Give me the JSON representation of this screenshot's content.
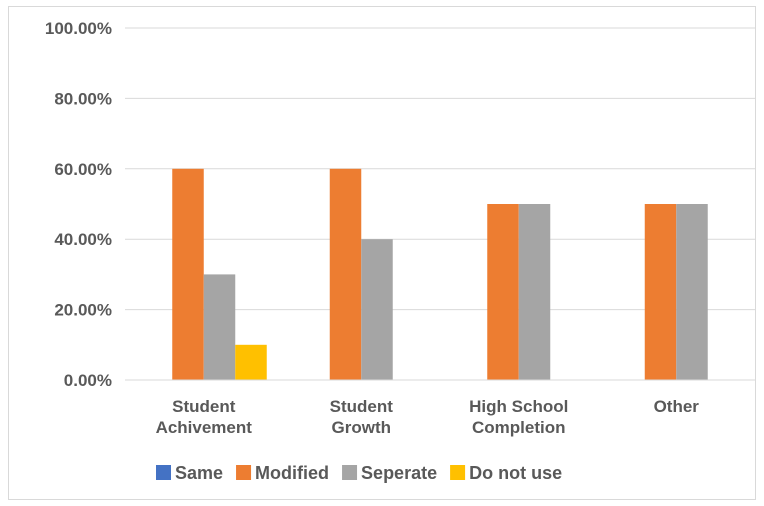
{
  "chart_data": {
    "type": "bar",
    "categories": [
      [
        "Student",
        "Achivement"
      ],
      [
        "Student",
        "Growth"
      ],
      [
        "High School",
        "Completion"
      ],
      [
        "Other"
      ]
    ],
    "series": [
      {
        "name": "Same",
        "color": "#4472c4",
        "values": [
          0,
          0,
          0,
          0
        ]
      },
      {
        "name": "Modified",
        "color": "#ed7d31",
        "values": [
          0.6,
          0.6,
          0.5,
          0.5
        ]
      },
      {
        "name": "Seperate",
        "color": "#a5a5a5",
        "values": [
          0.3,
          0.4,
          0.5,
          0.5
        ]
      },
      {
        "name": "Do not use",
        "color": "#ffc000",
        "values": [
          0.1,
          0,
          0,
          0
        ]
      }
    ],
    "yticks": [
      "0.00%",
      "20.00%",
      "40.00%",
      "60.00%",
      "80.00%",
      "100.00%"
    ],
    "ylim": [
      0,
      1
    ],
    "grid": true,
    "legend_position": "bottom"
  }
}
